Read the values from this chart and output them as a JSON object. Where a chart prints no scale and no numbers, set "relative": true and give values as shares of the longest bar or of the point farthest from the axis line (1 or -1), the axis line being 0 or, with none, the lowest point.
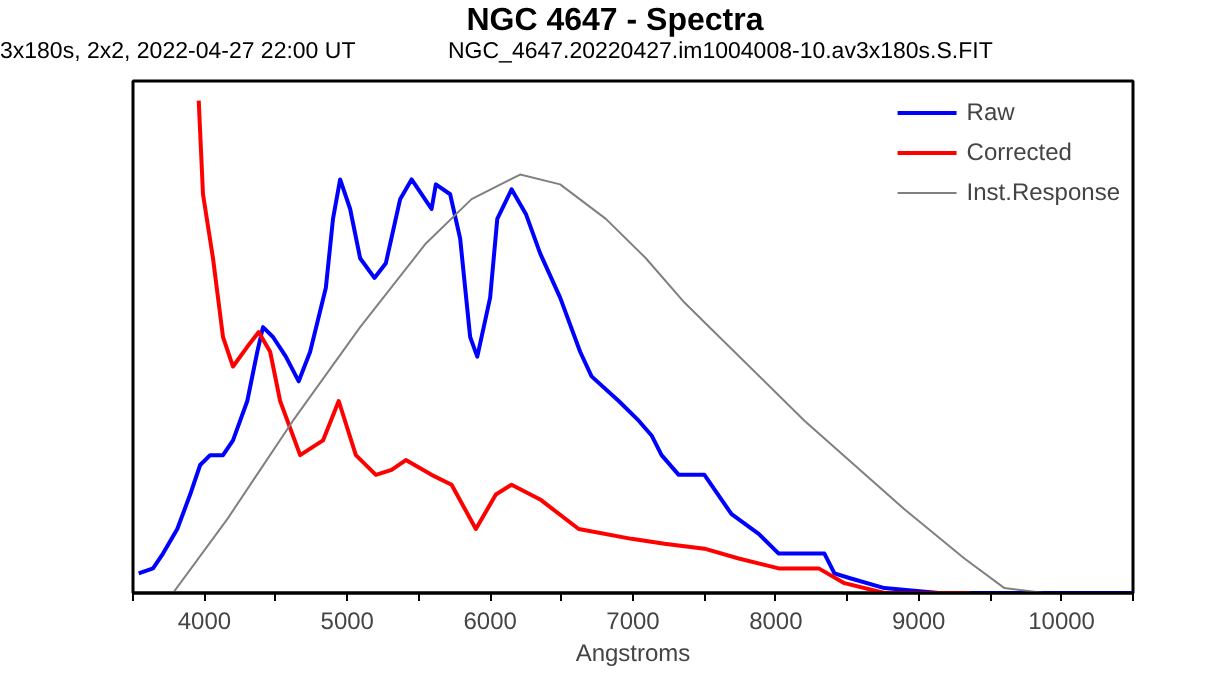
{
  "chart_data": {
    "type": "line",
    "title": "NGC 4647 - Spectra",
    "subtitle": "3x180s, 2x2, 2022-04-27 22:00 UT",
    "annotations": [
      "NGC_4647.20220427.im1004008-10.av3x180s.S.FIT"
    ],
    "xlabel": "Angstroms",
    "relative": true,
    "legend": "top right",
    "grid": false,
    "xlim": [
      3500,
      10500
    ],
    "xticks": [
      {
        "value": 3500,
        "label": null
      },
      4000,
      {
        "value": 4500,
        "label": null
      },
      5000,
      {
        "value": 5500,
        "label": null
      },
      6000,
      {
        "value": 6500,
        "label": null
      },
      7000,
      {
        "value": 7500,
        "label": null
      },
      8000,
      {
        "value": 8500,
        "label": null
      },
      9000,
      {
        "value": 9500,
        "label": null
      },
      10000,
      {
        "value": 10500,
        "label": null
      }
    ],
    "series": [
      {
        "name": "Raw",
        "color": "#0000ff",
        "x": [
          3540,
          3640,
          3710,
          3810,
          3900,
          3970,
          4040,
          4130,
          4200,
          4300,
          4370,
          4410,
          4480,
          4570,
          4660,
          4740,
          4850,
          4900,
          4950,
          5020,
          5090,
          5190,
          5270,
          5370,
          5450,
          5520,
          5590,
          5620,
          5720,
          5790,
          5860,
          5910,
          6000,
          6050,
          6150,
          6250,
          6350,
          6490,
          6630,
          6710,
          6900,
          7040,
          7130,
          7200,
          7320,
          7500,
          7690,
          7880,
          8020,
          8200,
          8340,
          8410,
          8520,
          8760,
          9140,
          10500
        ],
        "values": [
          0.04,
          0.05,
          0.08,
          0.13,
          0.2,
          0.26,
          0.28,
          0.28,
          0.31,
          0.39,
          0.49,
          0.54,
          0.52,
          0.48,
          0.43,
          0.49,
          0.62,
          0.76,
          0.84,
          0.78,
          0.68,
          0.64,
          0.67,
          0.8,
          0.84,
          0.81,
          0.78,
          0.83,
          0.81,
          0.72,
          0.52,
          0.48,
          0.6,
          0.76,
          0.82,
          0.77,
          0.69,
          0.6,
          0.49,
          0.44,
          0.39,
          0.35,
          0.32,
          0.28,
          0.24,
          0.24,
          0.16,
          0.12,
          0.08,
          0.08,
          0.08,
          0.04,
          0.03,
          0.01,
          0,
          0
        ]
      },
      {
        "name": "Corrected",
        "color": "#ff0000",
        "x": [
          3960,
          3990,
          4060,
          4130,
          4200,
          4300,
          4380,
          4460,
          4530,
          4670,
          4830,
          4940,
          5060,
          5200,
          5310,
          5410,
          5590,
          5730,
          5900,
          6040,
          6150,
          6350,
          6620,
          6990,
          7220,
          7500,
          7740,
          8020,
          8300,
          8480,
          8760,
          9360
        ],
        "values": [
          1.0,
          0.81,
          0.68,
          0.52,
          0.46,
          0.5,
          0.53,
          0.49,
          0.39,
          0.28,
          0.31,
          0.39,
          0.28,
          0.24,
          0.25,
          0.27,
          0.24,
          0.22,
          0.13,
          0.2,
          0.22,
          0.19,
          0.13,
          0.11,
          0.1,
          0.09,
          0.07,
          0.05,
          0.05,
          0.02,
          0,
          0
        ]
      },
      {
        "name": "Inst.Response",
        "color": "#808080",
        "x": [
          3780,
          4160,
          4620,
          5090,
          5550,
          5870,
          6210,
          6490,
          6810,
          7090,
          7360,
          7500,
          8200,
          8900,
          9320,
          9600,
          9880
        ],
        "values": [
          0,
          0.15,
          0.35,
          0.54,
          0.71,
          0.8,
          0.85,
          0.83,
          0.76,
          0.68,
          0.59,
          0.55,
          0.35,
          0.17,
          0.07,
          0.01,
          0
        ]
      }
    ]
  }
}
